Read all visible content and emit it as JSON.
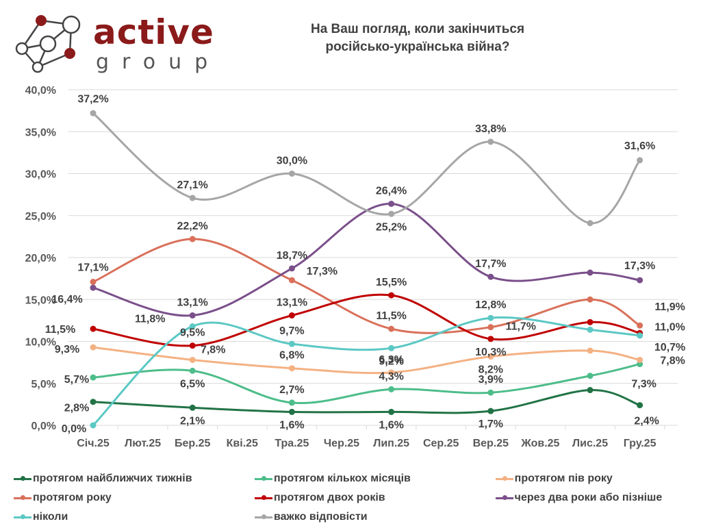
{
  "logo": {
    "word": "active",
    "sub": "group",
    "colors": {
      "accent": "#8b1a1a",
      "gray": "#555555"
    }
  },
  "title": {
    "line1": "На Ваш погляд, коли закінчиться",
    "line2": "російсько-українська війна?"
  },
  "chart_data": {
    "type": "line",
    "title": "На Ваш погляд, коли закінчиться російсько-українська війна?",
    "xlabel": "",
    "ylabel": "",
    "categories": [
      "Січ.25",
      "Лют.25",
      "Бер.25",
      "Кві.25",
      "Тра.25",
      "Чер.25",
      "Лип.25",
      "Сер.25",
      "Вер.25",
      "Жов.25",
      "Лис.25",
      "Гру.25"
    ],
    "y_ticks": [
      "0,0%",
      "5,0%",
      "10,0%",
      "15,0%",
      "20,0%",
      "25,0%",
      "30,0%",
      "35,0%",
      "40,0%"
    ],
    "ylim": [
      0,
      40
    ],
    "grid": true,
    "smooth": true,
    "legend_position": "bottom",
    "series": [
      {
        "name": "протягом найближчих тижнів",
        "color": "#217346",
        "points": [
          [
            0,
            2.8,
            "2,8%"
          ],
          [
            2,
            2.1,
            "2,1%"
          ],
          [
            4,
            1.6,
            "1,6%"
          ],
          [
            6,
            1.6,
            "1,6%"
          ],
          [
            8,
            1.7,
            "1,7%"
          ],
          [
            10,
            4.2,
            null
          ],
          [
            11,
            2.4,
            "2,4%"
          ]
        ]
      },
      {
        "name": "протягом кількох місяців",
        "color": "#4dbd8a",
        "points": [
          [
            0,
            5.7,
            "5,7%"
          ],
          [
            2,
            6.5,
            "6,5%"
          ],
          [
            4,
            2.7,
            "2,7%"
          ],
          [
            6,
            4.3,
            "4,3%"
          ],
          [
            8,
            3.9,
            "3,9%"
          ],
          [
            10,
            5.9,
            null
          ],
          [
            11,
            7.3,
            "7,3%"
          ]
        ]
      },
      {
        "name": "протягом пів року",
        "color": "#f4b183",
        "points": [
          [
            0,
            9.3,
            "9,3%"
          ],
          [
            2,
            7.8,
            "7,8%"
          ],
          [
            4,
            6.8,
            "6,8%"
          ],
          [
            6,
            6.3,
            "6,3%"
          ],
          [
            8,
            8.2,
            "8,2%"
          ],
          [
            10,
            8.9,
            null
          ],
          [
            11,
            7.8,
            "7,8%"
          ]
        ]
      },
      {
        "name": "протягом року",
        "color": "#d9705a",
        "points": [
          [
            0,
            17.1,
            "17,1%"
          ],
          [
            2,
            22.2,
            "22,2%"
          ],
          [
            4,
            17.3,
            "17,3%"
          ],
          [
            6,
            11.5,
            "11,5%"
          ],
          [
            8,
            11.7,
            "11,7%"
          ],
          [
            10,
            15.0,
            null
          ],
          [
            11,
            11.9,
            "11,9%"
          ]
        ]
      },
      {
        "name": "протягом двох років",
        "color": "#c00000",
        "points": [
          [
            0,
            11.5,
            "11,5%"
          ],
          [
            2,
            9.5,
            "9,5%"
          ],
          [
            4,
            13.1,
            "13,1%"
          ],
          [
            6,
            15.5,
            "15,5%"
          ],
          [
            8,
            10.3,
            "10,3%"
          ],
          [
            10,
            12.3,
            null
          ],
          [
            11,
            11.0,
            "11,0%"
          ]
        ]
      },
      {
        "name": "через два роки або пізніше",
        "color": "#7a4f8a",
        "points": [
          [
            0,
            16.4,
            "16,4%"
          ],
          [
            2,
            13.1,
            "13,1%"
          ],
          [
            4,
            18.7,
            "18,7%"
          ],
          [
            6,
            26.4,
            "26,4%"
          ],
          [
            8,
            17.7,
            "17,7%"
          ],
          [
            10,
            18.2,
            null
          ],
          [
            11,
            17.3,
            "17,3%"
          ]
        ]
      },
      {
        "name": "ніколи",
        "color": "#5bc8c4",
        "points": [
          [
            0,
            0.0,
            "0,0%"
          ],
          [
            2,
            11.8,
            "11,8%"
          ],
          [
            4,
            9.7,
            "9,7%"
          ],
          [
            6,
            9.2,
            "9,2%"
          ],
          [
            8,
            12.8,
            "12,8%"
          ],
          [
            10,
            11.4,
            null
          ],
          [
            11,
            10.7,
            "10,7%"
          ]
        ]
      },
      {
        "name": "важко відповісти",
        "color": "#a6a6a6",
        "points": [
          [
            0,
            37.2,
            "37,2%"
          ],
          [
            2,
            27.1,
            "27,1%"
          ],
          [
            4,
            30.0,
            "30,0%"
          ],
          [
            6,
            25.2,
            "25,2%"
          ],
          [
            8,
            33.8,
            "33,8%"
          ],
          [
            10,
            24.1,
            null
          ],
          [
            11,
            31.6,
            "31,6%"
          ]
        ]
      }
    ]
  }
}
